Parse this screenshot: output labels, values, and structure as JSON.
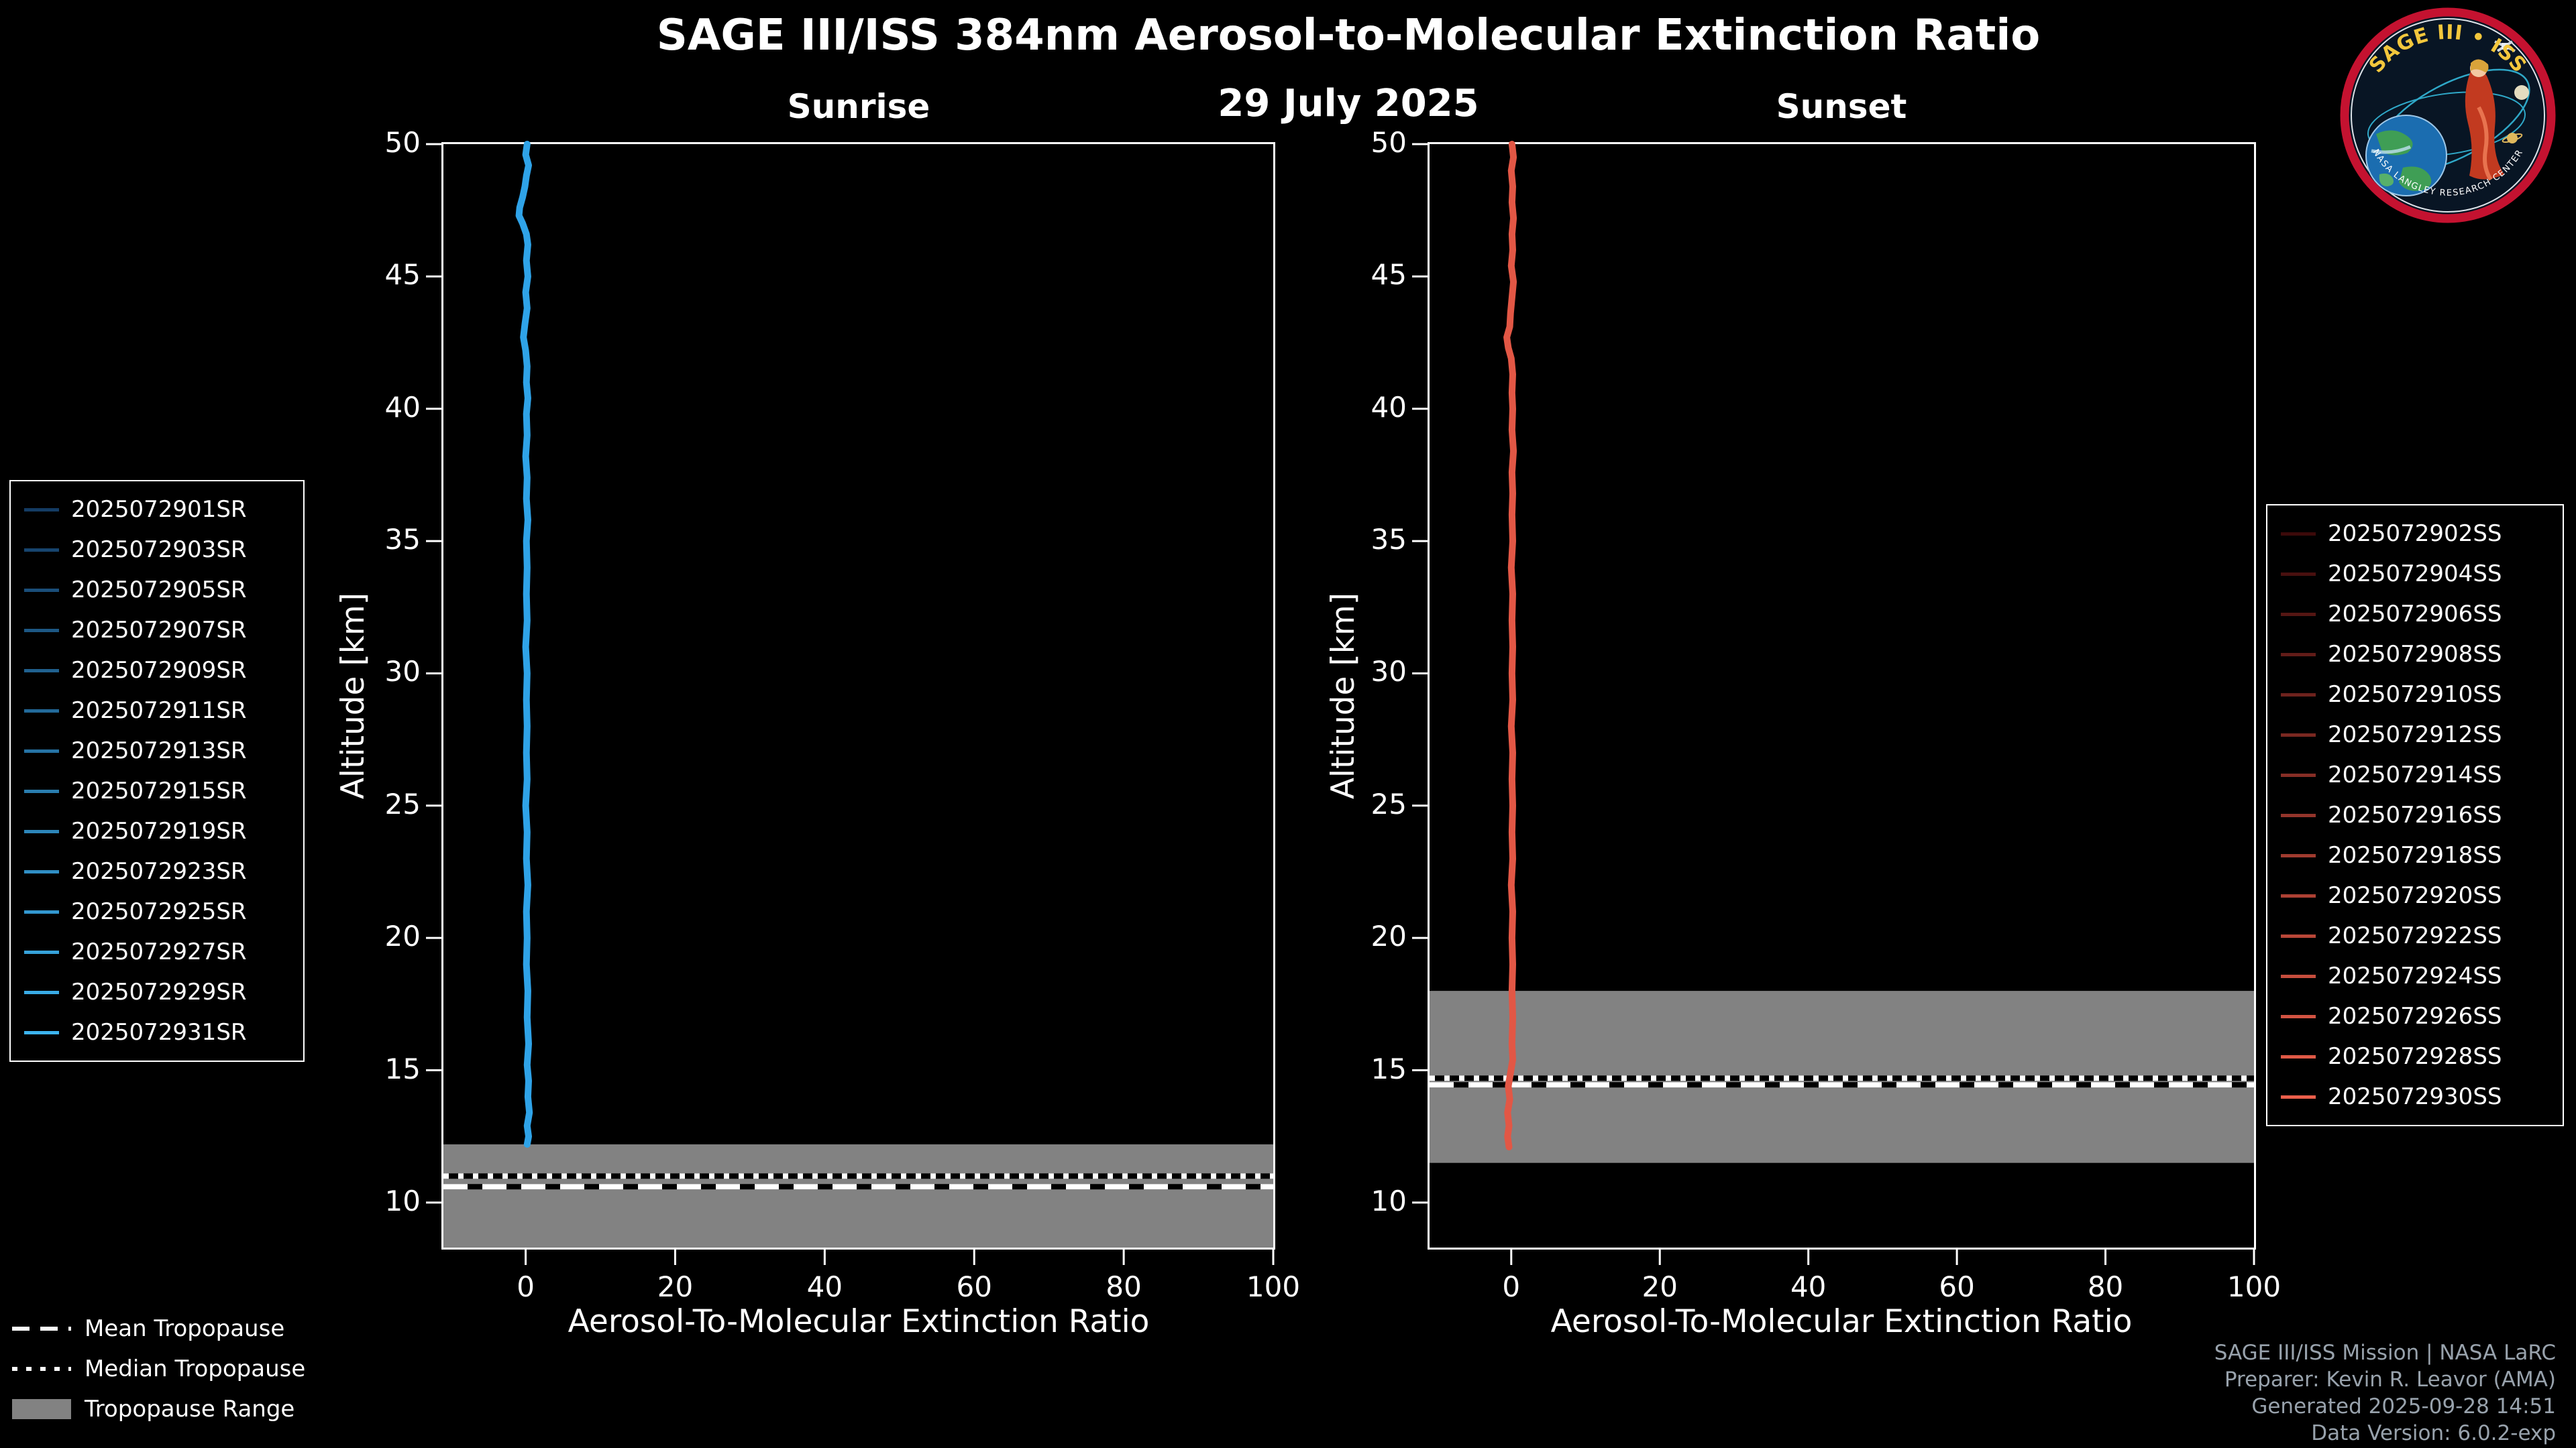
{
  "header": {
    "title": "SAGE III/ISS 384nm Aerosol-to-Molecular Extinction Ratio",
    "date": "29 July 2025"
  },
  "logo": {
    "title": "SAGE III • ISS",
    "arc_text": "NASA LANGLEY RESEARCH CENTER"
  },
  "colors": {
    "band": "#828282",
    "sunrise_line": "#2fa3e8",
    "sunset_line": "#e25745"
  },
  "chart_data": [
    {
      "type": "line",
      "panel": "sunrise",
      "title": "Sunrise",
      "xlabel": "Aerosol-To-Molecular Extinction Ratio",
      "ylabel": "Altitude [km]",
      "xlim": [
        -11,
        100
      ],
      "ylim": [
        8.3,
        50
      ],
      "xticks": [
        0,
        20,
        40,
        60,
        80,
        100
      ],
      "yticks": [
        10,
        15,
        20,
        25,
        30,
        35,
        40,
        45,
        50
      ],
      "line_color": "#2fa3e8",
      "tropopause": {
        "range": [
          8.3,
          12.2
        ],
        "mean": 10.6,
        "median": 11.0
      },
      "profile": [
        [
          0.2,
          50
        ],
        [
          0.0,
          49.6
        ],
        [
          0.4,
          49.2
        ],
        [
          0.1,
          48.8
        ],
        [
          -0.1,
          48.4
        ],
        [
          -0.4,
          48.0
        ],
        [
          -0.8,
          47.6
        ],
        [
          -0.9,
          47.3
        ],
        [
          -0.4,
          47.0
        ],
        [
          0.1,
          46.6
        ],
        [
          0.3,
          46.2
        ],
        [
          0.1,
          45.6
        ],
        [
          0.3,
          45.0
        ],
        [
          0.0,
          44.4
        ],
        [
          0.2,
          43.8
        ],
        [
          -0.1,
          43.2
        ],
        [
          -0.3,
          42.7
        ],
        [
          0.0,
          42.2
        ],
        [
          0.2,
          41.6
        ],
        [
          0.1,
          41.0
        ],
        [
          0.3,
          40.4
        ],
        [
          0.1,
          39.8
        ],
        [
          0.2,
          39.0
        ],
        [
          0.0,
          38.2
        ],
        [
          0.2,
          37.4
        ],
        [
          0.1,
          36.6
        ],
        [
          0.3,
          35.8
        ],
        [
          0.1,
          35.0
        ],
        [
          0.2,
          34.0
        ],
        [
          0.1,
          33.0
        ],
        [
          0.2,
          32.0
        ],
        [
          0.0,
          31.0
        ],
        [
          0.2,
          30.0
        ],
        [
          0.1,
          29.0
        ],
        [
          0.2,
          28.0
        ],
        [
          0.1,
          27.0
        ],
        [
          0.2,
          26.0
        ],
        [
          0.0,
          25.0
        ],
        [
          0.2,
          24.0
        ],
        [
          0.1,
          23.0
        ],
        [
          0.3,
          22.0
        ],
        [
          0.1,
          21.0
        ],
        [
          0.2,
          20.0
        ],
        [
          0.1,
          19.0
        ],
        [
          0.3,
          18.0
        ],
        [
          0.2,
          17.0
        ],
        [
          0.4,
          16.0
        ],
        [
          0.2,
          15.2
        ],
        [
          0.4,
          14.6
        ],
        [
          0.3,
          14.0
        ],
        [
          0.5,
          13.4
        ],
        [
          0.2,
          12.9
        ],
        [
          0.4,
          12.5
        ],
        [
          0.2,
          12.2
        ]
      ],
      "events": [
        {
          "label": "2025072901SR",
          "color": "#143c64"
        },
        {
          "label": "2025072903SR",
          "color": "#17456f"
        },
        {
          "label": "2025072905SR",
          "color": "#1a4e7a"
        },
        {
          "label": "2025072907SR",
          "color": "#1d5884"
        },
        {
          "label": "2025072909SR",
          "color": "#20618f"
        },
        {
          "label": "2025072911SR",
          "color": "#236a9a"
        },
        {
          "label": "2025072913SR",
          "color": "#2673a5"
        },
        {
          "label": "2025072915SR",
          "color": "#2a7daf"
        },
        {
          "label": "2025072919SR",
          "color": "#2d86ba"
        },
        {
          "label": "2025072923SR",
          "color": "#308fc5"
        },
        {
          "label": "2025072925SR",
          "color": "#3398d0"
        },
        {
          "label": "2025072927SR",
          "color": "#36a2da"
        },
        {
          "label": "2025072929SR",
          "color": "#39abe5"
        },
        {
          "label": "2025072931SR",
          "color": "#3cb4f0"
        }
      ]
    },
    {
      "type": "line",
      "panel": "sunset",
      "title": "Sunset",
      "xlabel": "Aerosol-To-Molecular Extinction Ratio",
      "ylabel": "Altitude [km]",
      "xlim": [
        -11,
        100
      ],
      "ylim": [
        8.3,
        50
      ],
      "xticks": [
        0,
        20,
        40,
        60,
        80,
        100
      ],
      "yticks": [
        10,
        15,
        20,
        25,
        30,
        35,
        40,
        45,
        50
      ],
      "line_color": "#e25745",
      "tropopause": {
        "range": [
          11.5,
          18.0
        ],
        "mean": 14.45,
        "median": 14.7
      },
      "profile": [
        [
          0.1,
          50
        ],
        [
          0.3,
          49.5
        ],
        [
          0.0,
          49.0
        ],
        [
          0.2,
          48.4
        ],
        [
          0.1,
          47.8
        ],
        [
          0.3,
          47.2
        ],
        [
          0.1,
          46.6
        ],
        [
          0.2,
          46.0
        ],
        [
          0.0,
          45.4
        ],
        [
          0.3,
          44.8
        ],
        [
          0.1,
          44.2
        ],
        [
          -0.1,
          43.6
        ],
        [
          -0.2,
          43.1
        ],
        [
          -0.6,
          42.7
        ],
        [
          -0.4,
          42.3
        ],
        [
          0.0,
          41.9
        ],
        [
          0.2,
          41.3
        ],
        [
          0.1,
          40.6
        ],
        [
          0.2,
          40.0
        ],
        [
          0.1,
          39.2
        ],
        [
          0.3,
          38.4
        ],
        [
          0.1,
          37.6
        ],
        [
          0.2,
          36.8
        ],
        [
          0.1,
          36.0
        ],
        [
          0.2,
          35.0
        ],
        [
          0.0,
          34.0
        ],
        [
          0.2,
          33.0
        ],
        [
          0.1,
          32.0
        ],
        [
          0.2,
          31.0
        ],
        [
          0.1,
          30.0
        ],
        [
          0.2,
          29.0
        ],
        [
          0.0,
          28.0
        ],
        [
          0.2,
          27.0
        ],
        [
          0.1,
          26.0
        ],
        [
          0.2,
          25.0
        ],
        [
          0.1,
          24.0
        ],
        [
          0.2,
          23.0
        ],
        [
          0.0,
          22.0
        ],
        [
          0.2,
          21.0
        ],
        [
          0.1,
          20.0
        ],
        [
          0.2,
          19.0
        ],
        [
          0.1,
          18.0
        ],
        [
          0.2,
          17.0
        ],
        [
          0.1,
          16.0
        ],
        [
          0.2,
          15.4
        ],
        [
          -0.1,
          14.9
        ],
        [
          -0.4,
          14.4
        ],
        [
          -0.2,
          13.9
        ],
        [
          -0.5,
          13.4
        ],
        [
          -0.3,
          12.9
        ],
        [
          -0.5,
          12.5
        ],
        [
          -0.3,
          12.1
        ]
      ],
      "events": [
        {
          "label": "2025072902SS",
          "color": "#3c0a0a"
        },
        {
          "label": "2025072904SS",
          "color": "#49100f"
        },
        {
          "label": "2025072906SS",
          "color": "#551613"
        },
        {
          "label": "2025072908SS",
          "color": "#621c18"
        },
        {
          "label": "2025072910SS",
          "color": "#6e221d"
        },
        {
          "label": "2025072912SS",
          "color": "#7b2821"
        },
        {
          "label": "2025072914SS",
          "color": "#872e26"
        },
        {
          "label": "2025072916SS",
          "color": "#94352b"
        },
        {
          "label": "2025072918SS",
          "color": "#a03b2f"
        },
        {
          "label": "2025072920SS",
          "color": "#ad4134"
        },
        {
          "label": "2025072922SS",
          "color": "#b94738"
        },
        {
          "label": "2025072924SS",
          "color": "#c64d3d"
        },
        {
          "label": "2025072926SS",
          "color": "#d25342"
        },
        {
          "label": "2025072928SS",
          "color": "#df5946"
        },
        {
          "label": "2025072930SS",
          "color": "#eb5f4b"
        }
      ]
    }
  ],
  "tropopause_legend": [
    {
      "label": "Mean Tropopause",
      "style": "dashed"
    },
    {
      "label": "Median Tropopause",
      "style": "dotted"
    },
    {
      "label": "Tropopause Range",
      "style": "range"
    }
  ],
  "footer": {
    "lines": [
      "SAGE III/ISS Mission | NASA LaRC",
      "Preparer: Kevin R. Leavor (AMA)",
      "Generated 2025-09-28 14:51",
      "Data Version: 6.0.2-exp"
    ]
  }
}
